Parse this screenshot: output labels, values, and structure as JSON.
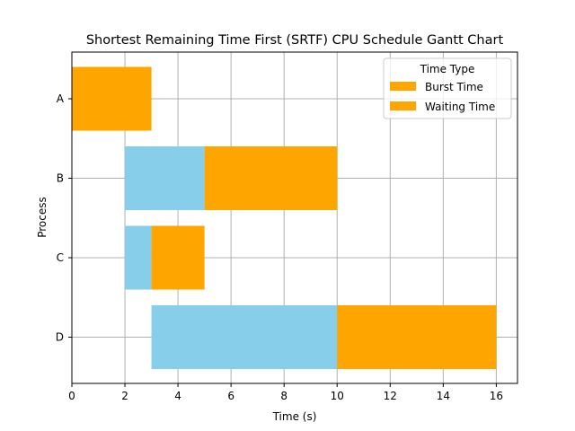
{
  "chart_data": {
    "type": "bar",
    "orientation": "horizontal-stacked",
    "title": "Shortest Remaining Time First (SRTF) CPU Schedule Gantt Chart",
    "xlabel": "Time (s)",
    "ylabel": "Process",
    "xlim": [
      0,
      16.8
    ],
    "xticks": [
      0,
      2,
      4,
      6,
      8,
      10,
      12,
      14,
      16
    ],
    "categories": [
      "A",
      "B",
      "C",
      "D"
    ],
    "grid": true,
    "legend": {
      "title": "Time Type",
      "position": "top-right",
      "entries": [
        {
          "label": "Burst Time",
          "color": "#ffa500"
        },
        {
          "label": "Waiting Time",
          "color": "#ffa500"
        }
      ]
    },
    "series": [
      {
        "color": "#87ceeb",
        "starts": [
          0,
          2,
          2,
          3
        ],
        "ends": [
          0,
          5,
          3,
          10
        ]
      },
      {
        "color": "#ffa500",
        "starts": [
          0,
          5,
          3,
          10
        ],
        "ends": [
          3,
          10,
          5,
          16
        ]
      }
    ]
  }
}
